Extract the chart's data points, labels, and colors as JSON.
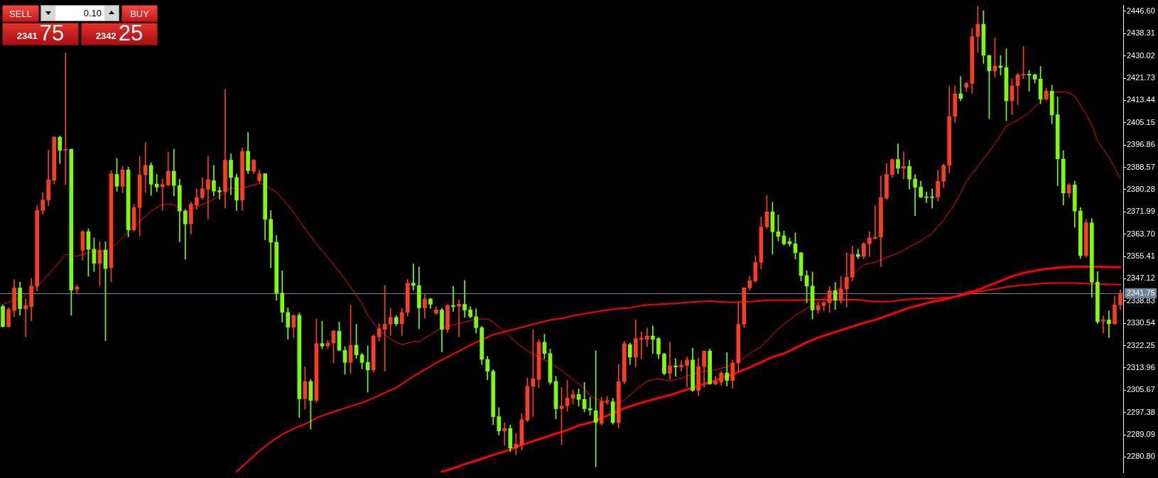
{
  "chart_data": {
    "type": "candlestick",
    "categories": [
      null,
      null,
      null,
      null,
      null,
      null,
      null,
      null,
      null,
      null,
      null,
      null,
      null,
      null,
      null,
      null,
      null,
      null,
      null,
      null,
      null,
      null,
      null,
      null,
      null,
      null,
      null,
      null,
      null,
      null,
      null,
      null,
      null,
      null,
      null,
      null,
      null,
      null,
      null,
      null,
      null,
      null,
      null,
      null,
      null,
      null,
      null,
      null,
      null,
      null,
      null,
      null,
      null,
      null,
      null,
      null,
      null,
      null,
      null,
      null,
      null,
      null,
      null,
      null,
      null,
      null,
      null,
      null,
      null,
      null,
      null,
      null,
      null,
      null,
      null,
      null,
      null,
      null,
      null,
      null,
      null,
      null,
      null,
      null,
      null,
      null,
      null,
      null,
      null,
      null,
      null,
      null,
      null,
      null,
      null,
      null,
      null,
      null,
      null,
      null,
      null,
      null,
      null,
      null,
      null,
      null,
      null,
      null,
      null,
      null,
      null,
      null,
      null,
      null,
      null,
      null,
      null,
      null,
      null,
      null,
      null,
      null,
      null,
      null,
      null,
      null,
      null,
      null,
      null,
      null,
      null,
      null,
      null,
      null,
      null,
      null,
      null,
      null,
      null,
      null,
      null,
      null,
      null,
      null,
      null,
      null,
      null,
      null,
      null,
      null,
      null,
      null,
      null,
      null,
      null,
      null,
      null,
      null,
      null,
      null,
      null,
      null,
      null,
      null,
      null,
      null,
      null,
      null,
      null,
      null,
      null,
      null,
      null,
      null,
      null,
      null,
      null,
      null,
      null,
      null,
      null,
      null,
      null,
      null,
      null,
      null,
      null,
      null,
      null,
      null,
      null,
      null,
      null,
      null,
      null,
      null,
      null
    ],
    "ohlc": [
      [
        2336.8,
        2337.4,
        2329.1,
        2329.3
      ],
      [
        2329.3,
        2336.3,
        2329.1,
        2335.7
      ],
      [
        2335.3,
        2346.8,
        2333.0,
        2343.7
      ],
      [
        2343.7,
        2345.9,
        2333.5,
        2336.0
      ],
      [
        2336.0,
        2339.6,
        2325.5,
        2337.2
      ],
      [
        2336.8,
        2347.3,
        2331.5,
        2344.4
      ],
      [
        2344.4,
        2374.3,
        2342.6,
        2372.5
      ],
      [
        2372.5,
        2379.2,
        2371.2,
        2376.4
      ],
      [
        2376.4,
        2395.0,
        2374.3,
        2384.0
      ],
      [
        2383.7,
        2400.0,
        2382.3,
        2399.8
      ],
      [
        2399.8,
        2400.2,
        2390.0,
        2394.9
      ],
      [
        2394.9,
        2431.1,
        2382.0,
        2395.3
      ],
      [
        2395.3,
        2395.3,
        2333.5,
        2342.9
      ],
      [
        2343.2,
        2344.9,
        2341.5,
        2344.0
      ],
      [
        2357.7,
        2365.1,
        2354.0,
        2364.6
      ],
      [
        2364.6,
        2365.7,
        2348.1,
        2358.1
      ],
      [
        2358.1,
        2362.3,
        2349.8,
        2352.8
      ],
      [
        2352.8,
        2360.9,
        2344.6,
        2357.8
      ],
      [
        2357.8,
        2360.9,
        2324.1,
        2350.9
      ],
      [
        2351.2,
        2387.3,
        2345.9,
        2386.2
      ],
      [
        2385.9,
        2391.9,
        2379.6,
        2381.5
      ],
      [
        2381.5,
        2388.9,
        2379.0,
        2387.6
      ],
      [
        2387.6,
        2388.6,
        2362.7,
        2365.3
      ],
      [
        2365.3,
        2374.8,
        2364.8,
        2373.6
      ],
      [
        2373.6,
        2392.6,
        2363.1,
        2385.8
      ],
      [
        2385.8,
        2397.8,
        2379.3,
        2389.3
      ],
      [
        2389.3,
        2390.3,
        2378.1,
        2382.3
      ],
      [
        2382.3,
        2385.9,
        2379.5,
        2381.2
      ],
      [
        2381.3,
        2384.3,
        2372.5,
        2382.2
      ],
      [
        2382.0,
        2394.2,
        2381.7,
        2387.1
      ],
      [
        2387.1,
        2395.3,
        2377.9,
        2381.8
      ],
      [
        2381.8,
        2384.2,
        2360.9,
        2372.3
      ],
      [
        2372.3,
        2372.9,
        2354.4,
        2367.5
      ],
      [
        2367.5,
        2375.6,
        2363.8,
        2374.8
      ],
      [
        2374.5,
        2380.6,
        2372.9,
        2377.4
      ],
      [
        2377.3,
        2384.8,
        2376.7,
        2380.6
      ],
      [
        2380.4,
        2392.5,
        2369.3,
        2384.0
      ],
      [
        2383.6,
        2389.2,
        2377.9,
        2379.7
      ],
      [
        2379.9,
        2381.2,
        2376.7,
        2379.4
      ],
      [
        2379.5,
        2417.5,
        2373.4,
        2391.2
      ],
      [
        2391.2,
        2393.6,
        2378.4,
        2384.8
      ],
      [
        2384.8,
        2386.1,
        2372.5,
        2376.4
      ],
      [
        2376.4,
        2395.8,
        2372.5,
        2394.5
      ],
      [
        2394.5,
        2401.5,
        2386.2,
        2387.3
      ],
      [
        2387.1,
        2391.5,
        2386.2,
        2391.2
      ],
      [
        2383.6,
        2387.6,
        2382.7,
        2386.2
      ],
      [
        2386.2,
        2386.2,
        2361.6,
        2369.2
      ],
      [
        2369.2,
        2372.5,
        2351.2,
        2360.7
      ],
      [
        2360.7,
        2363.2,
        2339.1,
        2341.8
      ],
      [
        2341.8,
        2350.1,
        2331.0,
        2334.6
      ],
      [
        2334.6,
        2336.3,
        2324.6,
        2329.1
      ],
      [
        2329.1,
        2333.7,
        2325.2,
        2333.5
      ],
      [
        2333.5,
        2334.4,
        2295.5,
        2302.5
      ],
      [
        2302.5,
        2314.4,
        2298.6,
        2308.9
      ],
      [
        2308.9,
        2309.7,
        2291.2,
        2301.9
      ],
      [
        2301.9,
        2332.1,
        2301.0,
        2323.0
      ],
      [
        2323.0,
        2331.3,
        2321.1,
        2322.1
      ],
      [
        2322.1,
        2324.1,
        2321.1,
        2323.2
      ],
      [
        2323.2,
        2328.0,
        2315.8,
        2327.6
      ],
      [
        2327.6,
        2331.0,
        2320.5,
        2320.5
      ],
      [
        2320.5,
        2321.9,
        2311.6,
        2316.0
      ],
      [
        2316.0,
        2337.2,
        2311.9,
        2322.4
      ],
      [
        2322.4,
        2330.2,
        2317.4,
        2318.8
      ],
      [
        2318.8,
        2319.4,
        2313.6,
        2316.0
      ],
      [
        2316.0,
        2322.1,
        2304.9,
        2313.2
      ],
      [
        2313.2,
        2326.3,
        2312.4,
        2325.8
      ],
      [
        2325.5,
        2330.4,
        2323.9,
        2328.5
      ],
      [
        2328.3,
        2344.6,
        2312.7,
        2330.2
      ],
      [
        2330.2,
        2336.1,
        2326.0,
        2332.7
      ],
      [
        2332.7,
        2333.5,
        2329.6,
        2330.4
      ],
      [
        2330.4,
        2336.1,
        2326.0,
        2334.6
      ],
      [
        2334.6,
        2346.8,
        2333.2,
        2345.5
      ],
      [
        2345.5,
        2352.6,
        2342.9,
        2344.6
      ],
      [
        2344.6,
        2351.5,
        2328.5,
        2336.3
      ],
      [
        2336.3,
        2341.3,
        2332.4,
        2339.6
      ],
      [
        2339.6,
        2339.8,
        2336.0,
        2337.6
      ],
      [
        2334.3,
        2336.6,
        2333.8,
        2335.5
      ],
      [
        2335.5,
        2336.1,
        2319.9,
        2328.3
      ],
      [
        2328.2,
        2337.6,
        2327.1,
        2337.2
      ],
      [
        2337.2,
        2344.3,
        2335.0,
        2336.8
      ],
      [
        2336.8,
        2339.3,
        2325.5,
        2337.7
      ],
      [
        2337.6,
        2346.5,
        2332.7,
        2335.4
      ],
      [
        2335.5,
        2336.8,
        2332.6,
        2333.0
      ],
      [
        2333.0,
        2336.0,
        2326.9,
        2328.9
      ],
      [
        2328.9,
        2329.4,
        2315.2,
        2317.1
      ],
      [
        2317.1,
        2318.3,
        2309.5,
        2312.7
      ],
      [
        2312.7,
        2313.3,
        2292.8,
        2295.8
      ],
      [
        2295.8,
        2299.1,
        2289.0,
        2290.5
      ],
      [
        2290.5,
        2293.6,
        2285.1,
        2291.4
      ],
      [
        2291.4,
        2292.7,
        2282.8,
        2284.2
      ],
      [
        2284.2,
        2289.7,
        2281.6,
        2285.6
      ],
      [
        2285.3,
        2296.9,
        2283.4,
        2294.7
      ],
      [
        2294.5,
        2310.2,
        2293.9,
        2307.1
      ],
      [
        2307.1,
        2328.2,
        2295.8,
        2309.9
      ],
      [
        2309.7,
        2324.6,
        2306.7,
        2323.5
      ],
      [
        2323.5,
        2326.5,
        2317.4,
        2319.3
      ],
      [
        2319.3,
        2321.0,
        2307.8,
        2308.6
      ],
      [
        2308.9,
        2310.8,
        2295.0,
        2298.8
      ],
      [
        2298.8,
        2306.7,
        2285.3,
        2299.7
      ],
      [
        2299.9,
        2309.3,
        2297.8,
        2302.7
      ],
      [
        2302.7,
        2305.8,
        2300.5,
        2304.1
      ],
      [
        2304.1,
        2306.1,
        2299.7,
        2302.2
      ],
      [
        2302.2,
        2308.6,
        2297.5,
        2298.8
      ],
      [
        2298.8,
        2303.0,
        2296.4,
        2298.3
      ],
      [
        2298.0,
        2320.4,
        2277.2,
        2293.6
      ],
      [
        2293.3,
        2303.0,
        2292.7,
        2301.4
      ],
      [
        2301.4,
        2303.4,
        2300.5,
        2301.7
      ],
      [
        2301.4,
        2302.7,
        2293.0,
        2293.6
      ],
      [
        2293.6,
        2315.2,
        2291.6,
        2308.9
      ],
      [
        2308.9,
        2323.8,
        2308.0,
        2323.0
      ],
      [
        2322.6,
        2323.2,
        2315.2,
        2318.0
      ],
      [
        2318.0,
        2331.8,
        2314.3,
        2324.9
      ],
      [
        2324.6,
        2327.4,
        2317.4,
        2324.9
      ],
      [
        2324.6,
        2328.7,
        2321.9,
        2325.8
      ],
      [
        2325.8,
        2329.6,
        2319.3,
        2324.6
      ],
      [
        2324.9,
        2325.2,
        2317.4,
        2319.1
      ],
      [
        2319.1,
        2319.4,
        2311.3,
        2311.9
      ],
      [
        2311.9,
        2323.5,
        2309.7,
        2314.7
      ],
      [
        2314.7,
        2317.4,
        2310.8,
        2314.3
      ],
      [
        2314.3,
        2316.6,
        2312.7,
        2315.0
      ],
      [
        2314.9,
        2318.0,
        2306.9,
        2316.9
      ],
      [
        2316.9,
        2321.3,
        2305.2,
        2305.6
      ],
      [
        2305.6,
        2317.7,
        2303.6,
        2314.4
      ],
      [
        2314.4,
        2320.2,
        2306.9,
        2320.2
      ],
      [
        2320.2,
        2321.0,
        2307.8,
        2308.0
      ],
      [
        2308.0,
        2310.8,
        2307.7,
        2308.9
      ],
      [
        2308.6,
        2312.7,
        2307.5,
        2312.1
      ],
      [
        2312.1,
        2319.7,
        2307.2,
        2309.3
      ],
      [
        2309.3,
        2316.9,
        2306.3,
        2315.8
      ],
      [
        2315.8,
        2338.5,
        2312.7,
        2330.2
      ],
      [
        2330.2,
        2343.7,
        2329.1,
        2343.7
      ],
      [
        2343.7,
        2348.1,
        2342.9,
        2346.3
      ],
      [
        2346.3,
        2355.7,
        2345.7,
        2353.2
      ],
      [
        2353.2,
        2370.1,
        2350.7,
        2366.4
      ],
      [
        2366.4,
        2378.1,
        2365.7,
        2372.0
      ],
      [
        2372.0,
        2375.6,
        2356.2,
        2364.6
      ],
      [
        2364.6,
        2370.9,
        2361.2,
        2362.9
      ],
      [
        2363.1,
        2364.9,
        2359.6,
        2360.1
      ],
      [
        2360.9,
        2362.3,
        2359.2,
        2360.1
      ],
      [
        2360.1,
        2364.2,
        2354.4,
        2356.8
      ],
      [
        2356.8,
        2356.8,
        2346.3,
        2348.3
      ],
      [
        2348.3,
        2350.1,
        2338.2,
        2344.4
      ],
      [
        2344.4,
        2349.6,
        2332.1,
        2335.5
      ],
      [
        2335.5,
        2338.2,
        2334.3,
        2337.2
      ],
      [
        2337.1,
        2338.7,
        2335.2,
        2338.2
      ],
      [
        2338.2,
        2344.3,
        2334.6,
        2342.7
      ],
      [
        2342.7,
        2345.7,
        2335.7,
        2339.1
      ],
      [
        2339.1,
        2347.9,
        2337.9,
        2343.3
      ],
      [
        2343.3,
        2356.8,
        2336.5,
        2347.7
      ],
      [
        2347.7,
        2359.3,
        2346.3,
        2356.2
      ],
      [
        2356.2,
        2358.1,
        2354.6,
        2355.4
      ],
      [
        2355.4,
        2360.7,
        2354.6,
        2360.1
      ],
      [
        2360.1,
        2364.6,
        2355.4,
        2362.3
      ],
      [
        2362.1,
        2374.2,
        2361.8,
        2362.6
      ],
      [
        2362.6,
        2385.4,
        2351.6,
        2377.3
      ],
      [
        2377.1,
        2390.0,
        2376.5,
        2385.9
      ],
      [
        2385.9,
        2391.7,
        2384.8,
        2391.5
      ],
      [
        2391.5,
        2397.3,
        2386.2,
        2388.2
      ],
      [
        2388.2,
        2394.3,
        2384.2,
        2388.9
      ],
      [
        2388.9,
        2391.2,
        2380.4,
        2384.2
      ],
      [
        2384.2,
        2385.9,
        2370.6,
        2381.2
      ],
      [
        2381.2,
        2383.4,
        2377.3,
        2377.5
      ],
      [
        2377.6,
        2379.4,
        2375.4,
        2377.3
      ],
      [
        2377.5,
        2380.6,
        2373.4,
        2377.3
      ],
      [
        2377.5,
        2387.5,
        2376.0,
        2383.4
      ],
      [
        2383.4,
        2389.8,
        2381.0,
        2389.3
      ],
      [
        2389.3,
        2418.9,
        2386.4,
        2407.5
      ],
      [
        2407.5,
        2418.9,
        2405.2,
        2415.9
      ],
      [
        2415.9,
        2422.4,
        2413.3,
        2414.2
      ],
      [
        2418.3,
        2420.2,
        2416.7,
        2419.8
      ],
      [
        2419.8,
        2440.3,
        2416.1,
        2437.2
      ],
      [
        2437.2,
        2448.5,
        2431.3,
        2441.8
      ],
      [
        2441.8,
        2446.8,
        2427.2,
        2430.2
      ],
      [
        2430.2,
        2430.2,
        2406.7,
        2424.4
      ],
      [
        2424.4,
        2436.8,
        2422.0,
        2426.3
      ],
      [
        2426.3,
        2430.2,
        2422.8,
        2425.7
      ],
      [
        2425.7,
        2432.7,
        2405.9,
        2413.3
      ],
      [
        2413.3,
        2421.6,
        2408.1,
        2418.9
      ],
      [
        2418.9,
        2423.5,
        2411.9,
        2423.0
      ],
      [
        2422.9,
        2433.5,
        2421.6,
        2423.1
      ],
      [
        2423.1,
        2424.6,
        2416.9,
        2422.9
      ],
      [
        2423.0,
        2423.3,
        2420.0,
        2421.4
      ],
      [
        2421.4,
        2426.1,
        2412.2,
        2413.9
      ],
      [
        2413.9,
        2418.0,
        2413.6,
        2417.0
      ],
      [
        2416.9,
        2419.1,
        2404.7,
        2408.1
      ],
      [
        2408.1,
        2414.7,
        2381.7,
        2391.7
      ],
      [
        2391.7,
        2394.8,
        2374.5,
        2379.0
      ],
      [
        2379.0,
        2382.5,
        2377.3,
        2382.0
      ],
      [
        2382.0,
        2383.4,
        2366.2,
        2372.3
      ],
      [
        2372.3,
        2373.6,
        2354.6,
        2355.7
      ],
      [
        2355.7,
        2369.2,
        2355.1,
        2367.9
      ],
      [
        2367.9,
        2369.5,
        2340.2,
        2345.9
      ],
      [
        2345.9,
        2349.8,
        2330.4,
        2331.1
      ],
      [
        2331.3,
        2333.3,
        2326.9,
        2331.8
      ],
      [
        2331.8,
        2335.2,
        2325.2,
        2330.4
      ],
      [
        2330.4,
        2340.7,
        2330.0,
        2337.4
      ],
      [
        2337.4,
        2342.9,
        2335.7,
        2341.5
      ]
    ],
    "colors": [
      "#7cfc00",
      "#ff3b20",
      "#ff3b20",
      "#7cfc00",
      "#ff3b20",
      "#ff3b20",
      "#ff3b20",
      "#ff3b20",
      "#ff3b20",
      "#ff3b20",
      "#7cfc00",
      "#ff3b20",
      "#7cfc00",
      "#ff3b20",
      "#ff3b20",
      "#7cfc00",
      "#7cfc00",
      "#ff3b20",
      "#7cfc00",
      "#ff3b20",
      "#7cfc00",
      "#ff3b20",
      "#7cfc00",
      "#ff3b20",
      "#ff3b20",
      "#ff3b20",
      "#7cfc00",
      "#7cfc00",
      "#ff3b20",
      "#ff3b20",
      "#7cfc00",
      "#7cfc00",
      "#7cfc00",
      "#ff3b20",
      "#ff3b20",
      "#ff3b20",
      "#ff3b20",
      "#7cfc00",
      "#7cfc00",
      "#ff3b20",
      "#7cfc00",
      "#7cfc00",
      "#ff3b20",
      "#7cfc00",
      "#ff3b20",
      "#ff3b20",
      "#7cfc00",
      "#7cfc00",
      "#7cfc00",
      "#7cfc00",
      "#7cfc00",
      "#ff3b20",
      "#7cfc00",
      "#ff3b20",
      "#7cfc00",
      "#ff3b20",
      "#7cfc00",
      "#ff3b20",
      "#ff3b20",
      "#7cfc00",
      "#7cfc00",
      "#ff3b20",
      "#7cfc00",
      "#7cfc00",
      "#7cfc00",
      "#ff3b20",
      "#ff3b20",
      "#ff3b20",
      "#ff3b20",
      "#7cfc00",
      "#ff3b20",
      "#ff3b20",
      "#7cfc00",
      "#7cfc00",
      "#ff3b20",
      "#7cfc00",
      "#ff3b20",
      "#7cfc00",
      "#ff3b20",
      "#7cfc00",
      "#ff3b20",
      "#7cfc00",
      "#7cfc00",
      "#7cfc00",
      "#7cfc00",
      "#7cfc00",
      "#7cfc00",
      "#7cfc00",
      "#ff3b20",
      "#7cfc00",
      "#ff3b20",
      "#ff3b20",
      "#ff3b20",
      "#ff3b20",
      "#ff3b20",
      "#7cfc00",
      "#7cfc00",
      "#7cfc00",
      "#ff3b20",
      "#ff3b20",
      "#ff3b20",
      "#7cfc00",
      "#7cfc00",
      "#7cfc00",
      "#7cfc00",
      "#ff3b20",
      "#ff3b20",
      "#7cfc00",
      "#ff3b20",
      "#ff3b20",
      "#7cfc00",
      "#ff3b20",
      "#ff3b20",
      "#ff3b20",
      "#7cfc00",
      "#7cfc00",
      "#7cfc00",
      "#ff3b20",
      "#7cfc00",
      "#ff3b20",
      "#ff3b20",
      "#7cfc00",
      "#ff3b20",
      "#ff3b20",
      "#7cfc00",
      "#ff3b20",
      "#ff3b20",
      "#7cfc00",
      "#ff3b20",
      "#ff3b20",
      "#ff3b20",
      "#ff3b20",
      "#ff3b20",
      "#ff3b20",
      "#ff3b20",
      "#7cfc00",
      "#7cfc00",
      "#7cfc00",
      "#7cfc00",
      "#7cfc00",
      "#7cfc00",
      "#7cfc00",
      "#7cfc00",
      "#ff3b20",
      "#ff3b20",
      "#ff3b20",
      "#7cfc00",
      "#ff3b20",
      "#ff3b20",
      "#ff3b20",
      "#7cfc00",
      "#ff3b20",
      "#ff3b20",
      "#ff3b20",
      "#ff3b20",
      "#ff3b20",
      "#ff3b20",
      "#7cfc00",
      "#ff3b20",
      "#7cfc00",
      "#7cfc00",
      "#7cfc00",
      "#7cfc00",
      "#7cfc00",
      "#ff3b20",
      "#ff3b20",
      "#ff3b20",
      "#ff3b20",
      "#7cfc00",
      "#ff3b20",
      "#ff3b20",
      "#ff3b20",
      "#7cfc00",
      "#7cfc00",
      "#ff3b20",
      "#7cfc00",
      "#7cfc00",
      "#ff3b20",
      "#ff3b20",
      "#ff3b20",
      "#7cfc00",
      "#7cfc00",
      "#7cfc00",
      "#ff3b20",
      "#7cfc00",
      "#7cfc00",
      "#7cfc00",
      "#ff3b20",
      "#7cfc00",
      "#7cfc00",
      "#ff3b20",
      "#7cfc00",
      "#7cfc00",
      "#ff3b20",
      "#7cfc00",
      "#ff3b20",
      "#ff3b20"
    ],
    "series": [
      {
        "type": "line",
        "color": "#ff0000",
        "values": [
          2337.6,
          null,
          null,
          2339.9,
          null,
          2342.4,
          null,
          2346.3,
          null,
          2351.2,
          null,
          2356.2,
          null,
          2355.5,
          null,
          2356.8,
          null,
          2357.3,
          2357.3,
          null,
          2360.1,
          null,
          2364.6,
          null,
          2368.4,
          null,
          2372.3,
          null,
          2374.8,
          null,
          2374.8,
          2373.1,
          2371.8,
          2372.9,
          null,
          2374.8,
          2375.6,
          null,
          2377.9,
          2379.2,
          2381.0,
          2380.3,
          2380.8,
          null,
          2382.0,
          2382.6,
          2382.0,
          2380.6,
          2379.2,
          null,
          2374.5,
          2371.8,
          null,
          2365.7,
          null,
          2360.1,
          null,
          2355.1,
          null,
          2349.8,
          null,
          2344.0,
          null,
          2337.9,
          2333.5,
          null,
          2328.0,
          null,
          2324.6,
          2323.5,
          2322.6,
          null,
          2323.8,
          2323.8,
          null,
          2326.3,
          null,
          2328.9,
          null,
          2330.0,
          null,
          2331.0,
          null,
          2332.2,
          null,
          2332.1,
          2331.0,
          null,
          2327.4,
          null,
          2323.5,
          null,
          2320.2,
          null,
          2318.0,
          null,
          2315.8,
          null,
          2313.0,
          null,
          2309.7,
          null,
          2306.3,
          2303.6,
          2302.5,
          null,
          2301.0,
          2300.3,
          null,
          2301.9,
          null,
          2305.8,
          null,
          2309.1,
          null,
          2309.9,
          null,
          2309.1,
          null,
          2310.2,
          null,
          2311.6,
          null,
          2312.7,
          null,
          2313.3,
          null,
          2314.3,
          null,
          2316.3,
          null,
          2319.3,
          null,
          2321.9,
          null,
          2326.3,
          2328.5,
          2330.2,
          null,
          2333.5,
          null,
          2336.0,
          null,
          2338.5,
          null,
          2341.3,
          null,
          2344.0,
          null,
          2348.5,
          null,
          2352.4,
          null,
          2353.2,
          null,
          2355.1,
          null,
          2356.6,
          null,
          2359.0,
          null,
          2361.2,
          null,
          2364.0,
          null,
          2369.0,
          null,
          2375.1,
          null,
          2383.4,
          2386.2,
          null,
          2391.7,
          null,
          2397.3,
          null,
          2403.9,
          null,
          2406.1,
          null,
          2408.9,
          null,
          2413.1,
          2415.0,
          2416.4,
          2416.6,
          2416.6,
          2416.3,
          2415.0,
          2411.7,
          2408.3,
          2404.4,
          2398.4,
          null,
          2392.3,
          null,
          2384.5
        ]
      },
      {
        "type": "line",
        "color": "#ff0000",
        "values": [
          null,
          null,
          null,
          null,
          null,
          null,
          null,
          null,
          null,
          null,
          null,
          null,
          null,
          null,
          null,
          null,
          null,
          null,
          null,
          null,
          null,
          null,
          null,
          null,
          null,
          null,
          null,
          null,
          null,
          null,
          null,
          null,
          null,
          null,
          null,
          null,
          null,
          null,
          null,
          null,
          null,
          2275.3,
          null,
          2279.2,
          null,
          2283.1,
          null,
          2286.4,
          null,
          2289.2,
          null,
          2291.4,
          null,
          2293.0,
          null,
          2295.3,
          null,
          2296.9,
          null,
          2298.3,
          null,
          2299.7,
          null,
          2301.0,
          null,
          2302.7,
          null,
          2304.7,
          null,
          2306.6,
          2308.0,
          null,
          2310.8,
          null,
          2313.3,
          null,
          2315.8,
          null,
          2318.0,
          null,
          2320.2,
          null,
          2322.4,
          null,
          2324.4,
          null,
          2326.3,
          null,
          2327.4,
          null,
          2328.5,
          null,
          2329.6,
          null,
          2330.7,
          null,
          2331.8,
          null,
          2332.4,
          null,
          2333.3,
          null,
          2334.1,
          null,
          2334.8,
          null,
          2335.5,
          null,
          2336.0,
          null,
          2336.3,
          null,
          2337.1,
          null,
          2337.5,
          null,
          2337.7,
          null,
          2337.9,
          null,
          2338.3,
          null,
          2338.6,
          null,
          2338.8,
          null,
          2338.5,
          null,
          2338.3,
          null,
          2338.5,
          null,
          2338.7,
          null,
          2339.1,
          null,
          2339.1,
          null,
          2339.1,
          null,
          2339.2,
          null,
          2339.3,
          null,
          2339.3,
          null,
          2339.3,
          null,
          2339.3,
          null,
          2339.3,
          null,
          2338.8,
          null,
          2338.6,
          null,
          2338.7,
          null,
          2339.3,
          null,
          2339.6,
          null,
          2339.8,
          null,
          2339.9,
          null,
          2340.2,
          null,
          2340.7,
          null,
          2341.8,
          null,
          2342.6,
          null,
          2343.3,
          null,
          2344.0,
          null,
          2344.6,
          null,
          2344.9,
          null,
          2345.3,
          null,
          2345.5,
          null,
          2345.5,
          null,
          2345.5,
          null,
          2345.3,
          null,
          2345.1,
          null,
          2345.0,
          null,
          2344.9
        ]
      },
      {
        "type": "line",
        "color": "#ff0000",
        "values": [
          null,
          null,
          null,
          null,
          null,
          null,
          null,
          null,
          null,
          null,
          null,
          null,
          null,
          null,
          null,
          null,
          null,
          null,
          null,
          null,
          null,
          null,
          null,
          null,
          null,
          null,
          null,
          null,
          null,
          null,
          null,
          null,
          null,
          null,
          null,
          null,
          null,
          null,
          null,
          null,
          null,
          null,
          null,
          null,
          null,
          null,
          null,
          null,
          null,
          null,
          null,
          null,
          null,
          null,
          null,
          null,
          null,
          null,
          null,
          null,
          null,
          null,
          null,
          null,
          null,
          null,
          null,
          null,
          null,
          null,
          null,
          null,
          null,
          null,
          null,
          null,
          null,
          2275.3,
          null,
          2276.6,
          null,
          2278.1,
          null,
          2279.4,
          null,
          2280.9,
          null,
          2282.2,
          null,
          2283.6,
          null,
          2285.3,
          null,
          2286.7,
          null,
          2288.0,
          null,
          2289.5,
          null,
          2290.8,
          null,
          2292.5,
          null,
          2293.6,
          null,
          2295.3,
          null,
          2297.1,
          null,
          2298.9,
          null,
          2300.3,
          null,
          2301.6,
          null,
          2302.7,
          null,
          2303.8,
          null,
          2305.2,
          null,
          2306.6,
          null,
          2308.0,
          null,
          2309.3,
          null,
          2310.8,
          null,
          2312.4,
          null,
          2314.1,
          null,
          2316.0,
          null,
          2318.0,
          null,
          2319.3,
          null,
          2321.3,
          null,
          2323.5,
          null,
          2325.2,
          null,
          2326.6,
          null,
          2328.0,
          null,
          2329.3,
          null,
          2330.7,
          null,
          2331.8,
          null,
          2333.3,
          null,
          2334.8,
          null,
          2336.3,
          null,
          2337.4,
          null,
          2338.5,
          null,
          2339.3,
          null,
          2340.4,
          null,
          2341.8,
          null,
          2342.9,
          null,
          2344.6,
          null,
          2346.3,
          null,
          2348.0,
          null,
          2349.3,
          null,
          2350.1,
          null,
          2350.8,
          null,
          2351.2,
          null,
          2351.5,
          null,
          2351.6,
          null,
          2351.6,
          null,
          2351.5,
          null,
          2351.4,
          2351.4
        ]
      }
    ],
    "ylim": [
      2275.0,
      2448.8
    ],
    "yticks": [
      {
        "value": 2446.6,
        "label": "2446.60"
      },
      2438.31,
      2430.02,
      2421.73,
      2413.44,
      2405.15,
      2396.86,
      2388.57,
      2380.28,
      2371.99,
      {
        "value": 2363.7,
        "label": "2363.70"
      },
      2355.41,
      2347.12,
      2338.83,
      2330.54,
      2322.25,
      2313.96,
      2305.67,
      2297.38,
      2289.09,
      {
        "value": 2280.8,
        "label": "2280.80"
      }
    ],
    "tick_labels": "y",
    "ref_lines": [
      {
        "axis": "y",
        "value": 2341.75,
        "label": "2341.75",
        "color": "#71859a"
      }
    ],
    "annotations": [
      "SELL",
      "0.10",
      "BUY",
      "2341",
      "75",
      "2342",
      "25"
    ]
  }
}
